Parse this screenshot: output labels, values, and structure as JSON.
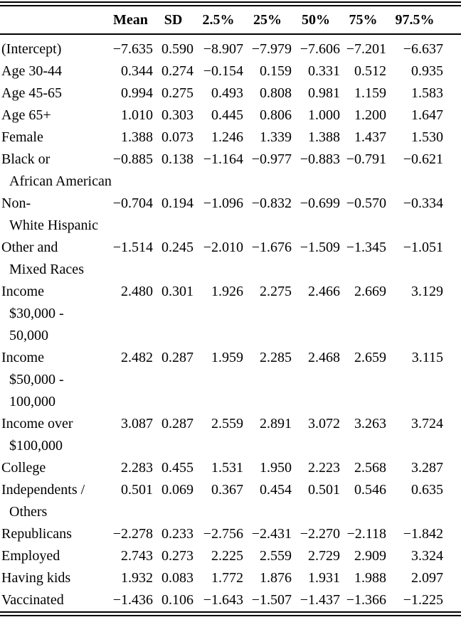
{
  "table": {
    "headers": [
      "Mean",
      "SD",
      "2.5%",
      "25%",
      "50%",
      "75%",
      "97.5%"
    ],
    "rows": [
      {
        "label_lines": [
          "(Intercept)"
        ],
        "values": [
          "−7.635",
          "0.590",
          "−8.907",
          "−7.979",
          "−7.606",
          "−7.201",
          "−6.637"
        ]
      },
      {
        "label_lines": [
          "Age 30-44"
        ],
        "values": [
          "0.344",
          "0.274",
          "−0.154",
          "0.159",
          "0.331",
          "0.512",
          "0.935"
        ]
      },
      {
        "label_lines": [
          "Age 45-65"
        ],
        "values": [
          "0.994",
          "0.275",
          "0.493",
          "0.808",
          "0.981",
          "1.159",
          "1.583"
        ]
      },
      {
        "label_lines": [
          "Age 65+"
        ],
        "values": [
          "1.010",
          "0.303",
          "0.445",
          "0.806",
          "1.000",
          "1.200",
          "1.647"
        ]
      },
      {
        "label_lines": [
          "Female"
        ],
        "values": [
          "1.388",
          "0.073",
          "1.246",
          "1.339",
          "1.388",
          "1.437",
          "1.530"
        ]
      },
      {
        "label_lines": [
          "Black or",
          "African American"
        ],
        "values": [
          "−0.885",
          "0.138",
          "−1.164",
          "−0.977",
          "−0.883",
          "−0.791",
          "−0.621"
        ]
      },
      {
        "label_lines": [
          "Non-",
          "White Hispanic"
        ],
        "values": [
          "−0.704",
          "0.194",
          "−1.096",
          "−0.832",
          "−0.699",
          "−0.570",
          "−0.334"
        ]
      },
      {
        "label_lines": [
          "Other and",
          "Mixed Races"
        ],
        "values": [
          "−1.514",
          "0.245",
          "−2.010",
          "−1.676",
          "−1.509",
          "−1.345",
          "−1.051"
        ]
      },
      {
        "label_lines": [
          "Income",
          "$30,000 -",
          "50,000"
        ],
        "values": [
          "2.480",
          "0.301",
          "1.926",
          "2.275",
          "2.466",
          "2.669",
          "3.129"
        ]
      },
      {
        "label_lines": [
          "Income",
          "$50,000 -",
          "100,000"
        ],
        "values": [
          "2.482",
          "0.287",
          "1.959",
          "2.285",
          "2.468",
          "2.659",
          "3.115"
        ]
      },
      {
        "label_lines": [
          "Income over",
          "$100,000"
        ],
        "values": [
          "3.087",
          "0.287",
          "2.559",
          "2.891",
          "3.072",
          "3.263",
          "3.724"
        ]
      },
      {
        "label_lines": [
          "College"
        ],
        "values": [
          "2.283",
          "0.455",
          "1.531",
          "1.950",
          "2.223",
          "2.568",
          "3.287"
        ]
      },
      {
        "label_lines": [
          "Independents /",
          "Others"
        ],
        "values": [
          "0.501",
          "0.069",
          "0.367",
          "0.454",
          "0.501",
          "0.546",
          "0.635"
        ]
      },
      {
        "label_lines": [
          "Republicans"
        ],
        "values": [
          "−2.278",
          "0.233",
          "−2.756",
          "−2.431",
          "−2.270",
          "−2.118",
          "−1.842"
        ]
      },
      {
        "label_lines": [
          "Employed"
        ],
        "values": [
          "2.743",
          "0.273",
          "2.225",
          "2.559",
          "2.729",
          "2.909",
          "3.324"
        ]
      },
      {
        "label_lines": [
          "Having kids"
        ],
        "values": [
          "1.932",
          "0.083",
          "1.772",
          "1.876",
          "1.931",
          "1.988",
          "2.097"
        ]
      },
      {
        "label_lines": [
          "Vaccinated"
        ],
        "values": [
          "−1.436",
          "0.106",
          "−1.643",
          "−1.507",
          "−1.437",
          "−1.366",
          "−1.225"
        ]
      }
    ]
  }
}
